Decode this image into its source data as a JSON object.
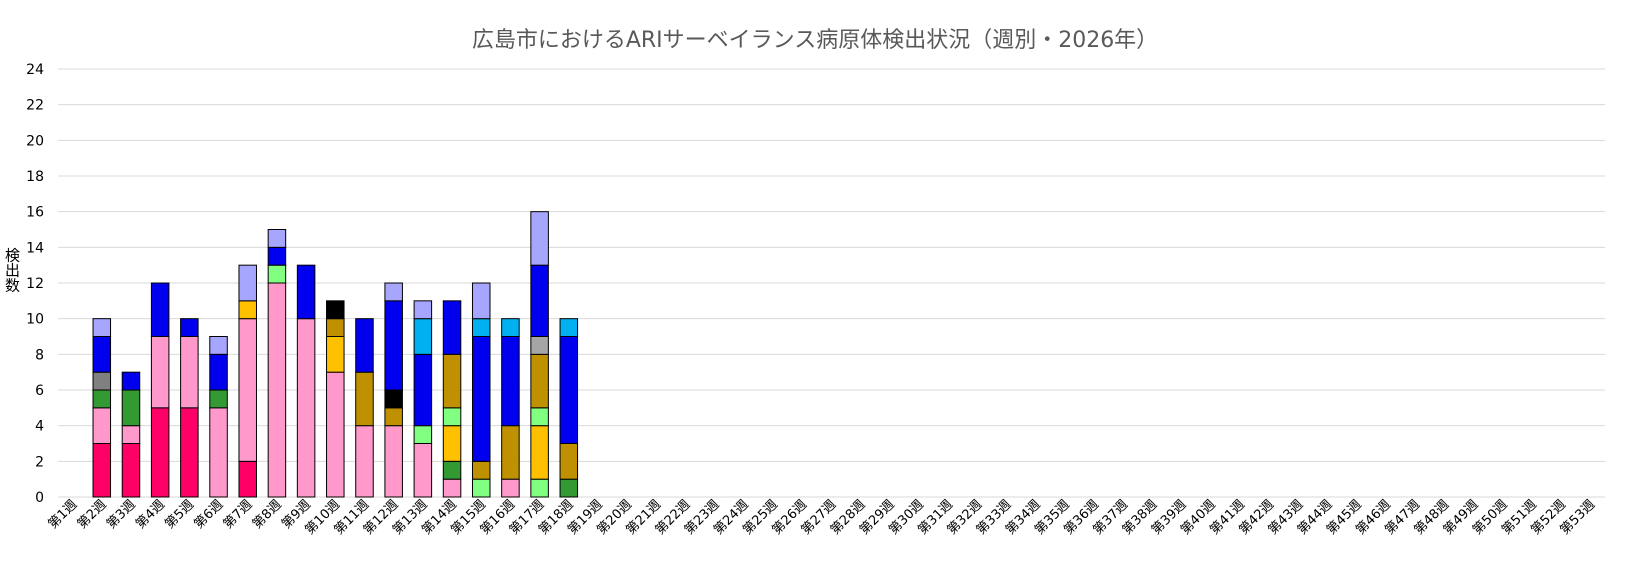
{
  "chart_data": {
    "type": "bar",
    "stacked": true,
    "title": "広島市におけるARIサーベイランス病原体検出状況（週別・2026年）",
    "ylabel": "検出数",
    "xlabel": "",
    "ylim": [
      0,
      24
    ],
    "yticks": [
      0,
      2,
      4,
      6,
      8,
      10,
      12,
      14,
      16,
      18,
      20,
      22,
      24
    ],
    "grid": true,
    "legend": "none",
    "categories": [
      "第1週",
      "第2週",
      "第3週",
      "第4週",
      "第5週",
      "第6週",
      "第7週",
      "第8週",
      "第9週",
      "第10週",
      "第11週",
      "第12週",
      "第13週",
      "第14週",
      "第15週",
      "第16週",
      "第17週",
      "第18週",
      "第19週",
      "第20週",
      "第21週",
      "第22週",
      "第23週",
      "第24週",
      "第25週",
      "第26週",
      "第27週",
      "第28週",
      "第29週",
      "第30週",
      "第31週",
      "第32週",
      "第33週",
      "第34週",
      "第35週",
      "第36週",
      "第37週",
      "第38週",
      "第39週",
      "第40週",
      "第41週",
      "第42週",
      "第43週",
      "第44週",
      "第45週",
      "第46週",
      "第47週",
      "第48週",
      "第49週",
      "第50週",
      "第51週",
      "第52週",
      "第53週"
    ],
    "series": [
      {
        "color": "#ff0066",
        "values": [
          0,
          3,
          3,
          5,
          5,
          0,
          2,
          0,
          0,
          0,
          0,
          0,
          0,
          0,
          0,
          0,
          0,
          0,
          0,
          0,
          0,
          0,
          0,
          0,
          0,
          0,
          0,
          0,
          0,
          0,
          0,
          0,
          0,
          0,
          0,
          0,
          0,
          0,
          0,
          0,
          0,
          0,
          0,
          0,
          0,
          0,
          0,
          0,
          0,
          0,
          0,
          0,
          0
        ]
      },
      {
        "color": "#ff99cc",
        "values": [
          0,
          2,
          1,
          4,
          4,
          5,
          8,
          12,
          10,
          7,
          4,
          4,
          3,
          1,
          0,
          1,
          0,
          0,
          0,
          0,
          0,
          0,
          0,
          0,
          0,
          0,
          0,
          0,
          0,
          0,
          0,
          0,
          0,
          0,
          0,
          0,
          0,
          0,
          0,
          0,
          0,
          0,
          0,
          0,
          0,
          0,
          0,
          0,
          0,
          0,
          0,
          0,
          0
        ]
      },
      {
        "color": "#80ff80",
        "values": [
          0,
          0,
          0,
          0,
          0,
          0,
          0,
          1,
          0,
          0,
          0,
          0,
          1,
          0,
          1,
          0,
          1,
          0,
          0,
          0,
          0,
          0,
          0,
          0,
          0,
          0,
          0,
          0,
          0,
          0,
          0,
          0,
          0,
          0,
          0,
          0,
          0,
          0,
          0,
          0,
          0,
          0,
          0,
          0,
          0,
          0,
          0,
          0,
          0,
          0,
          0,
          0,
          0
        ]
      },
      {
        "color": "#339933",
        "values": [
          0,
          1,
          2,
          0,
          0,
          1,
          0,
          0,
          0,
          0,
          0,
          0,
          0,
          1,
          0,
          0,
          0,
          1,
          0,
          0,
          0,
          0,
          0,
          0,
          0,
          0,
          0,
          0,
          0,
          0,
          0,
          0,
          0,
          0,
          0,
          0,
          0,
          0,
          0,
          0,
          0,
          0,
          0,
          0,
          0,
          0,
          0,
          0,
          0,
          0,
          0,
          0,
          0
        ]
      },
      {
        "color": "#ffc000",
        "values": [
          0,
          0,
          0,
          0,
          0,
          0,
          1,
          0,
          0,
          2,
          0,
          0,
          0,
          2,
          0,
          0,
          3,
          0,
          0,
          0,
          0,
          0,
          0,
          0,
          0,
          0,
          0,
          0,
          0,
          0,
          0,
          0,
          0,
          0,
          0,
          0,
          0,
          0,
          0,
          0,
          0,
          0,
          0,
          0,
          0,
          0,
          0,
          0,
          0,
          0,
          0,
          0,
          0
        ]
      },
      {
        "color": "#80ff80",
        "values": [
          0,
          0,
          0,
          0,
          0,
          0,
          0,
          0,
          0,
          0,
          0,
          0,
          0,
          1,
          0,
          0,
          1,
          0,
          0,
          0,
          0,
          0,
          0,
          0,
          0,
          0,
          0,
          0,
          0,
          0,
          0,
          0,
          0,
          0,
          0,
          0,
          0,
          0,
          0,
          0,
          0,
          0,
          0,
          0,
          0,
          0,
          0,
          0,
          0,
          0,
          0,
          0,
          0
        ]
      },
      {
        "color": "#bf9000",
        "values": [
          0,
          0,
          0,
          0,
          0,
          0,
          0,
          0,
          0,
          1,
          3,
          1,
          0,
          3,
          1,
          3,
          3,
          2,
          0,
          0,
          0,
          0,
          0,
          0,
          0,
          0,
          0,
          0,
          0,
          0,
          0,
          0,
          0,
          0,
          0,
          0,
          0,
          0,
          0,
          0,
          0,
          0,
          0,
          0,
          0,
          0,
          0,
          0,
          0,
          0,
          0,
          0,
          0
        ]
      },
      {
        "color": "#808080",
        "values": [
          0,
          1,
          0,
          0,
          0,
          0,
          0,
          0,
          0,
          0,
          0,
          0,
          0,
          0,
          0,
          0,
          0,
          0,
          0,
          0,
          0,
          0,
          0,
          0,
          0,
          0,
          0,
          0,
          0,
          0,
          0,
          0,
          0,
          0,
          0,
          0,
          0,
          0,
          0,
          0,
          0,
          0,
          0,
          0,
          0,
          0,
          0,
          0,
          0,
          0,
          0,
          0,
          0
        ]
      },
      {
        "color": "#a6a6a6",
        "values": [
          0,
          0,
          0,
          0,
          0,
          0,
          0,
          0,
          0,
          0,
          0,
          0,
          0,
          0,
          0,
          0,
          1,
          0,
          0,
          0,
          0,
          0,
          0,
          0,
          0,
          0,
          0,
          0,
          0,
          0,
          0,
          0,
          0,
          0,
          0,
          0,
          0,
          0,
          0,
          0,
          0,
          0,
          0,
          0,
          0,
          0,
          0,
          0,
          0,
          0,
          0,
          0,
          0
        ]
      },
      {
        "color": "#000000",
        "values": [
          0,
          0,
          0,
          0,
          0,
          0,
          0,
          0,
          0,
          1,
          0,
          1,
          0,
          0,
          0,
          0,
          0,
          0,
          0,
          0,
          0,
          0,
          0,
          0,
          0,
          0,
          0,
          0,
          0,
          0,
          0,
          0,
          0,
          0,
          0,
          0,
          0,
          0,
          0,
          0,
          0,
          0,
          0,
          0,
          0,
          0,
          0,
          0,
          0,
          0,
          0,
          0,
          0
        ]
      },
      {
        "color": "#0000ee",
        "values": [
          0,
          2,
          1,
          3,
          1,
          2,
          0,
          1,
          3,
          0,
          3,
          5,
          4,
          3,
          7,
          5,
          4,
          6,
          0,
          0,
          0,
          0,
          0,
          0,
          0,
          0,
          0,
          0,
          0,
          0,
          0,
          0,
          0,
          0,
          0,
          0,
          0,
          0,
          0,
          0,
          0,
          0,
          0,
          0,
          0,
          0,
          0,
          0,
          0,
          0,
          0,
          0,
          0
        ]
      },
      {
        "color": "#00b0f0",
        "values": [
          0,
          0,
          0,
          0,
          0,
          0,
          0,
          0,
          0,
          0,
          0,
          0,
          2,
          0,
          1,
          1,
          0,
          1,
          0,
          0,
          0,
          0,
          0,
          0,
          0,
          0,
          0,
          0,
          0,
          0,
          0,
          0,
          0,
          0,
          0,
          0,
          0,
          0,
          0,
          0,
          0,
          0,
          0,
          0,
          0,
          0,
          0,
          0,
          0,
          0,
          0,
          0,
          0
        ]
      },
      {
        "color": "#a6a6ff",
        "values": [
          0,
          1,
          0,
          0,
          0,
          1,
          2,
          1,
          0,
          0,
          0,
          1,
          1,
          0,
          2,
          0,
          3,
          0,
          0,
          0,
          0,
          0,
          0,
          0,
          0,
          0,
          0,
          0,
          0,
          0,
          0,
          0,
          0,
          0,
          0,
          0,
          0,
          0,
          0,
          0,
          0,
          0,
          0,
          0,
          0,
          0,
          0,
          0,
          0,
          0,
          0,
          0,
          0
        ]
      }
    ]
  }
}
